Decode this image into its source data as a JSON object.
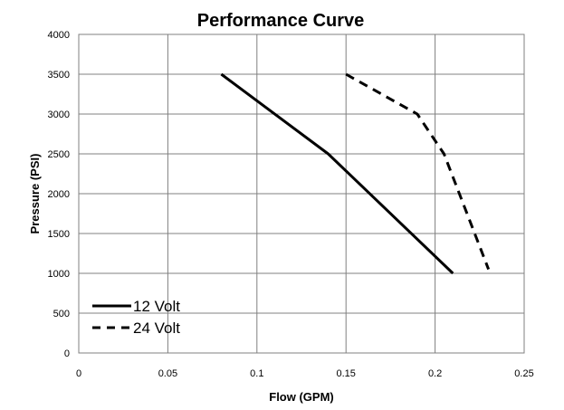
{
  "chart_data": {
    "type": "line",
    "title": "Performance Curve",
    "xlabel": "Flow (GPM)",
    "ylabel": "Pressure (PSI)",
    "xlim": [
      0,
      0.25
    ],
    "ylim": [
      0,
      4000
    ],
    "x_ticks": [
      "0",
      "0.05",
      "0.1",
      "0.15",
      "0.2",
      "0.25"
    ],
    "y_ticks": [
      "0",
      "500",
      "1000",
      "1500",
      "2000",
      "2500",
      "3000",
      "3500",
      "4000"
    ],
    "grid": true,
    "legend_position": "bottom-left",
    "series": [
      {
        "name": "12 Volt",
        "style": "solid",
        "color": "#000000",
        "x": [
          0.08,
          0.14,
          0.21
        ],
        "y": [
          3500,
          2500,
          1000
        ]
      },
      {
        "name": "24 Volt",
        "style": "dashed",
        "color": "#000000",
        "x": [
          0.15,
          0.17,
          0.19,
          0.205,
          0.23
        ],
        "y": [
          3500,
          3250,
          3000,
          2500,
          1050
        ]
      }
    ]
  }
}
